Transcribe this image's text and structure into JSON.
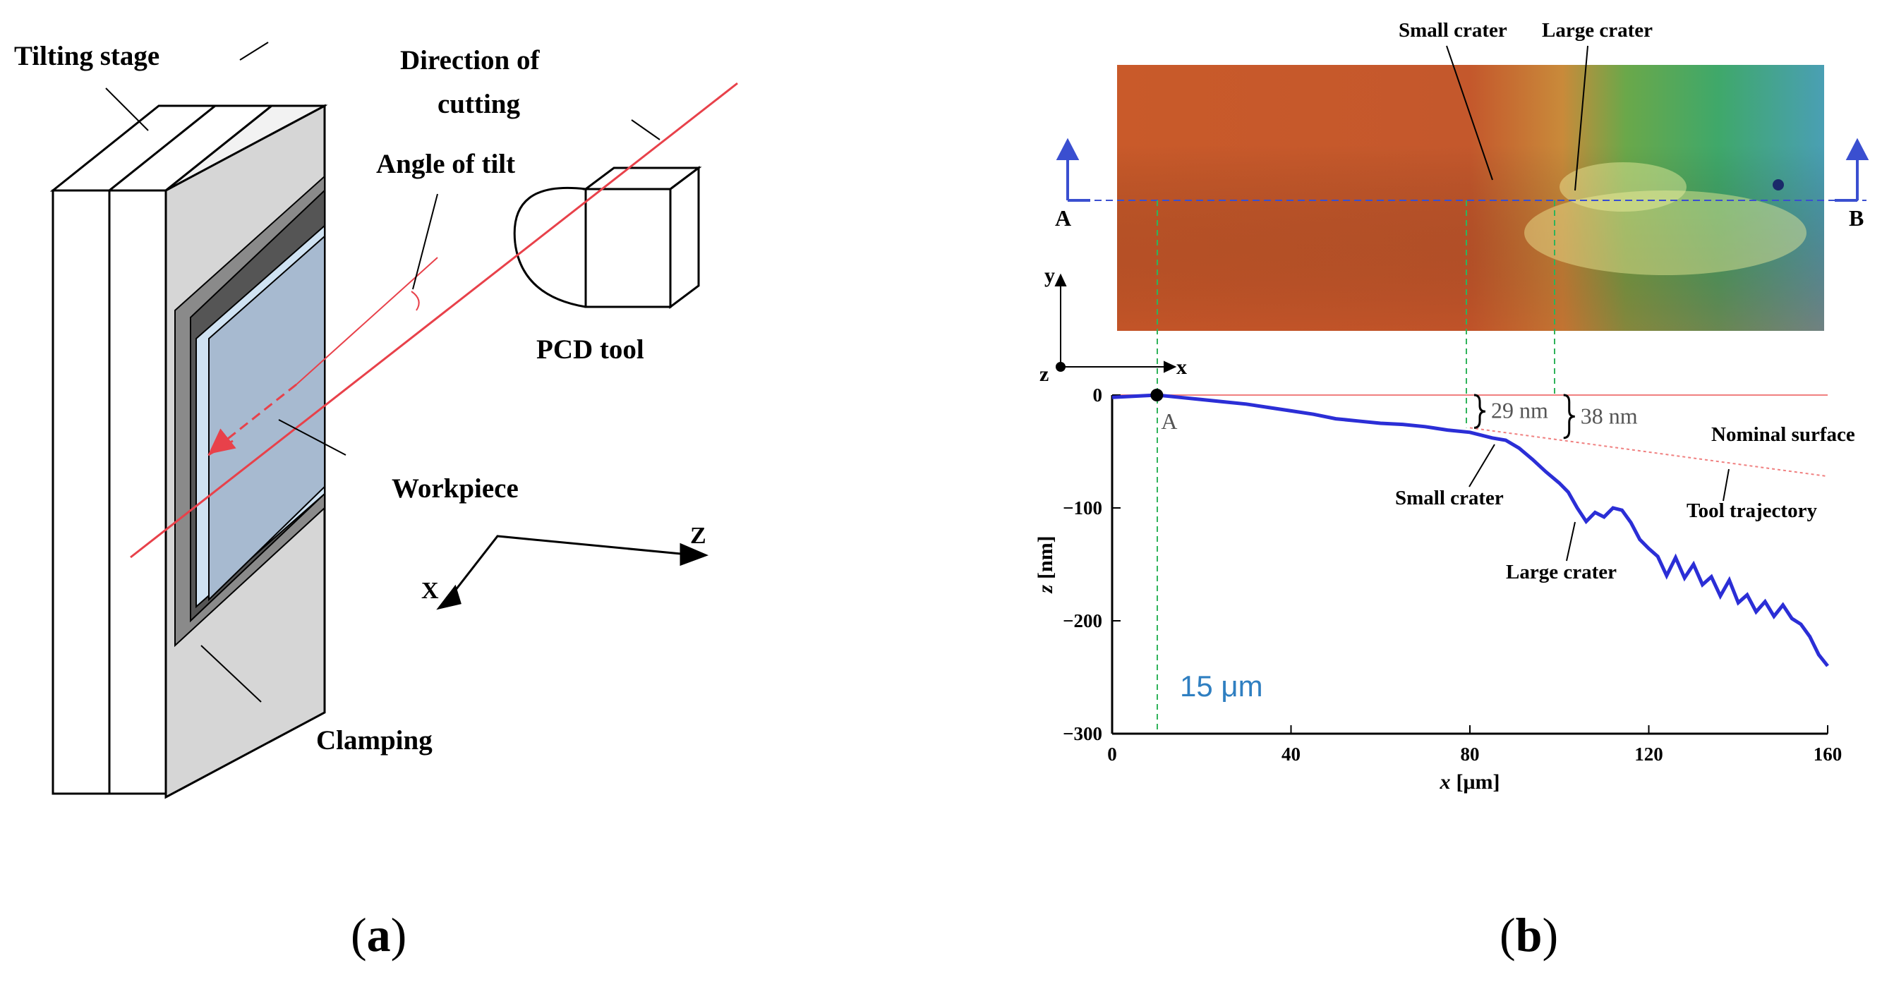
{
  "panel_a": {
    "labels": {
      "tilting_stage": "Tilting stage",
      "direction_line1": "Direction of",
      "direction_line2": "cutting",
      "angle_of_tilt": "Angle of tilt",
      "pcd_tool": "PCD tool",
      "workpiece": "Workpiece",
      "clamping": "Clamping",
      "axis_z": "Z",
      "axis_x": "X"
    },
    "colors": {
      "cut_line": "#e8414a",
      "workpiece": "#a7bad0",
      "plate": "#d6d6d6",
      "clamp": "#8a8a8a"
    },
    "caption": {
      "open": "(",
      "letter": "a",
      "close": ")"
    }
  },
  "panel_b": {
    "map_labels": {
      "small_crater": "Small crater",
      "large_crater": "Large crater",
      "point_a": "A",
      "point_b": "B",
      "axis_y": "y",
      "axis_z": "z",
      "axis_x": "x"
    },
    "profile_labels": {
      "point_a": "A",
      "dim_29": "29 nm",
      "dim_38": "38 nm",
      "nominal_surface": "Nominal surface",
      "tool_trajectory": "Tool trajectory",
      "small_crater": "Small crater",
      "large_crater": "Large crater",
      "offset": "15 μm"
    },
    "colors": {
      "profile": "#2b2ed6",
      "nominal": "#f08080",
      "guide": "#2fb35a",
      "offset_text": "#2f7fc1"
    },
    "caption": {
      "open": "(",
      "letter": "b",
      "close": ")"
    },
    "chart_data": {
      "type": "line",
      "xlabel_var": "x",
      "xlabel_unit": "[μm]",
      "ylabel_var": "z",
      "ylabel_unit": "[nm]",
      "xlim": [
        0,
        160
      ],
      "ylim": [
        -300,
        0
      ],
      "xticks": [
        0,
        40,
        80,
        120,
        160
      ],
      "yticks": [
        0,
        -100,
        -200,
        -300
      ],
      "x": [
        0,
        5,
        10,
        15,
        20,
        25,
        30,
        35,
        40,
        45,
        50,
        55,
        60,
        65,
        70,
        75,
        80,
        85,
        88,
        91,
        94,
        97,
        100,
        102,
        104,
        106,
        108,
        110,
        112,
        114,
        116,
        118,
        120,
        122,
        124,
        126,
        128,
        130,
        132,
        134,
        136,
        138,
        140,
        142,
        144,
        146,
        148,
        150,
        152,
        154,
        156,
        158,
        160
      ],
      "z": [
        -2,
        -1,
        0,
        -2,
        -4,
        -6,
        -8,
        -11,
        -14,
        -17,
        -21,
        -23,
        -25,
        -26,
        -28,
        -31,
        -33,
        -38,
        -40,
        -47,
        -57,
        -68,
        -78,
        -86,
        -100,
        -112,
        -104,
        -108,
        -100,
        -102,
        -113,
        -128,
        -136,
        -143,
        -160,
        -144,
        -162,
        -150,
        -168,
        -161,
        -178,
        -164,
        -184,
        -177,
        -192,
        -183,
        -196,
        -186,
        -198,
        -203,
        -214,
        -230,
        -240
      ],
      "trajectory": [
        [
          80,
          -29
        ],
        [
          160,
          -72
        ]
      ]
    }
  }
}
